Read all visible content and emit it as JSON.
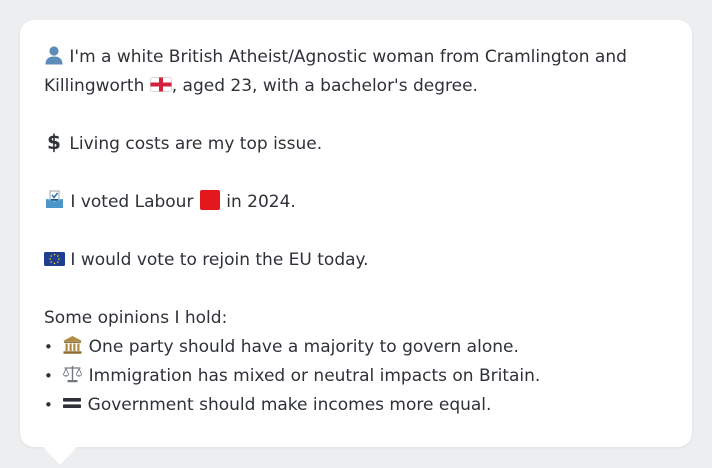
{
  "profile": {
    "line1": "I'm a white British Atheist/Agnostic woman from Cramlington and",
    "line2": ", aged 23, with a bachelor's degree.",
    "town_tail": "Killingworth",
    "issue": "Living costs are my top issue.",
    "vote_prefix": "I voted Labour",
    "vote_suffix": "in 2024.",
    "eu": "I would vote to rejoin the EU today.",
    "opinions_heading": "Some opinions I hold:",
    "opinions": [
      {
        "icon": "classical-building-icon",
        "text": "One party should have a majority to govern alone."
      },
      {
        "icon": "balance-scale-icon",
        "text": "Immigration has mixed or neutral impacts on Britain."
      },
      {
        "icon": "equals-icon",
        "text": "Government should make incomes more equal."
      }
    ],
    "bullet": "•"
  },
  "colors": {
    "background": "#eceef0",
    "card": "#ffffff",
    "text": "#2e3238",
    "labour_red": "#e4181c",
    "eu_blue": "#1f3e8f",
    "person_icon": "#5b8db8"
  }
}
